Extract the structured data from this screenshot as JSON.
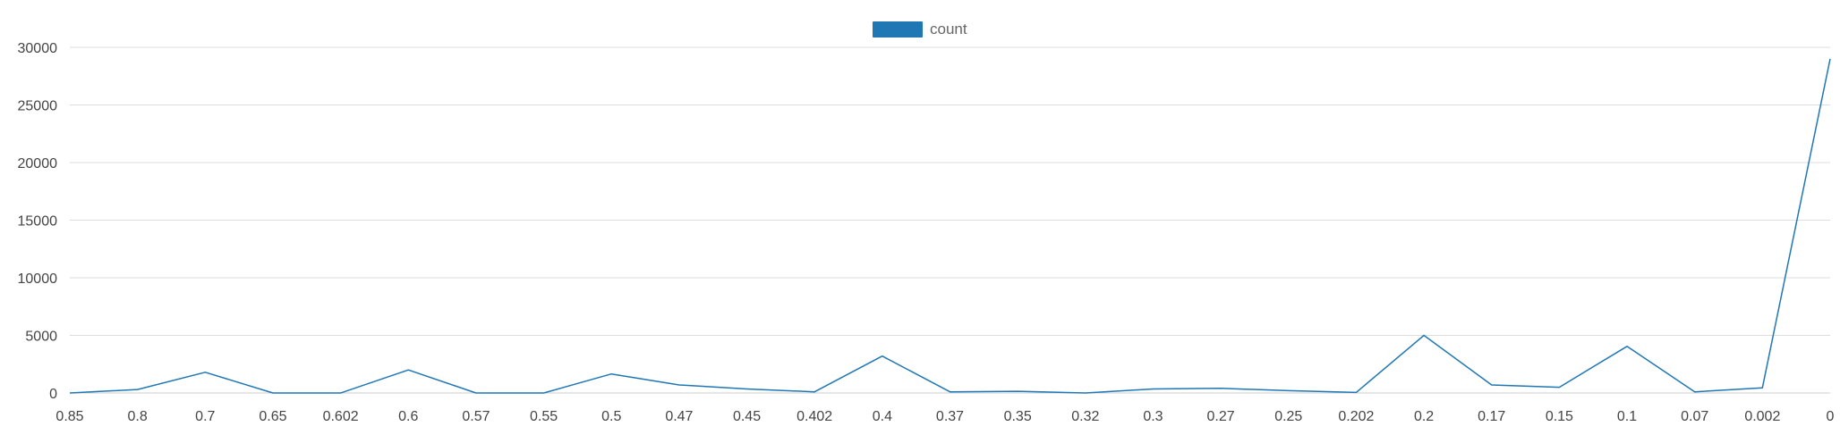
{
  "chart_data": {
    "type": "line",
    "legend": {
      "placement": "top-center",
      "entries": [
        "count"
      ]
    },
    "grid": true,
    "ylim": [
      0,
      30000
    ],
    "y_ticks": [
      "0",
      "5000",
      "10000",
      "15000",
      "20000",
      "25000",
      "30000"
    ],
    "categories": [
      "0.85",
      "0.8",
      "0.7",
      "0.65",
      "0.602",
      "0.6",
      "0.57",
      "0.55",
      "0.5",
      "0.47",
      "0.45",
      "0.402",
      "0.4",
      "0.37",
      "0.35",
      "0.32",
      "0.3",
      "0.27",
      "0.25",
      "0.202",
      "0.2",
      "0.17",
      "0.15",
      "0.1",
      "0.07",
      "0.002",
      "0"
    ],
    "series": [
      {
        "name": "count",
        "values": [
          0,
          300,
          1800,
          0,
          0,
          2000,
          0,
          0,
          1650,
          700,
          350,
          100,
          3200,
          100,
          150,
          0,
          350,
          400,
          200,
          50,
          5000,
          700,
          500,
          4050,
          100,
          450,
          29000
        ]
      }
    ],
    "colors": {
      "series": "#1f77b4",
      "grid": "#dddddd",
      "axis": "#cccccc",
      "text": "#444444"
    }
  }
}
